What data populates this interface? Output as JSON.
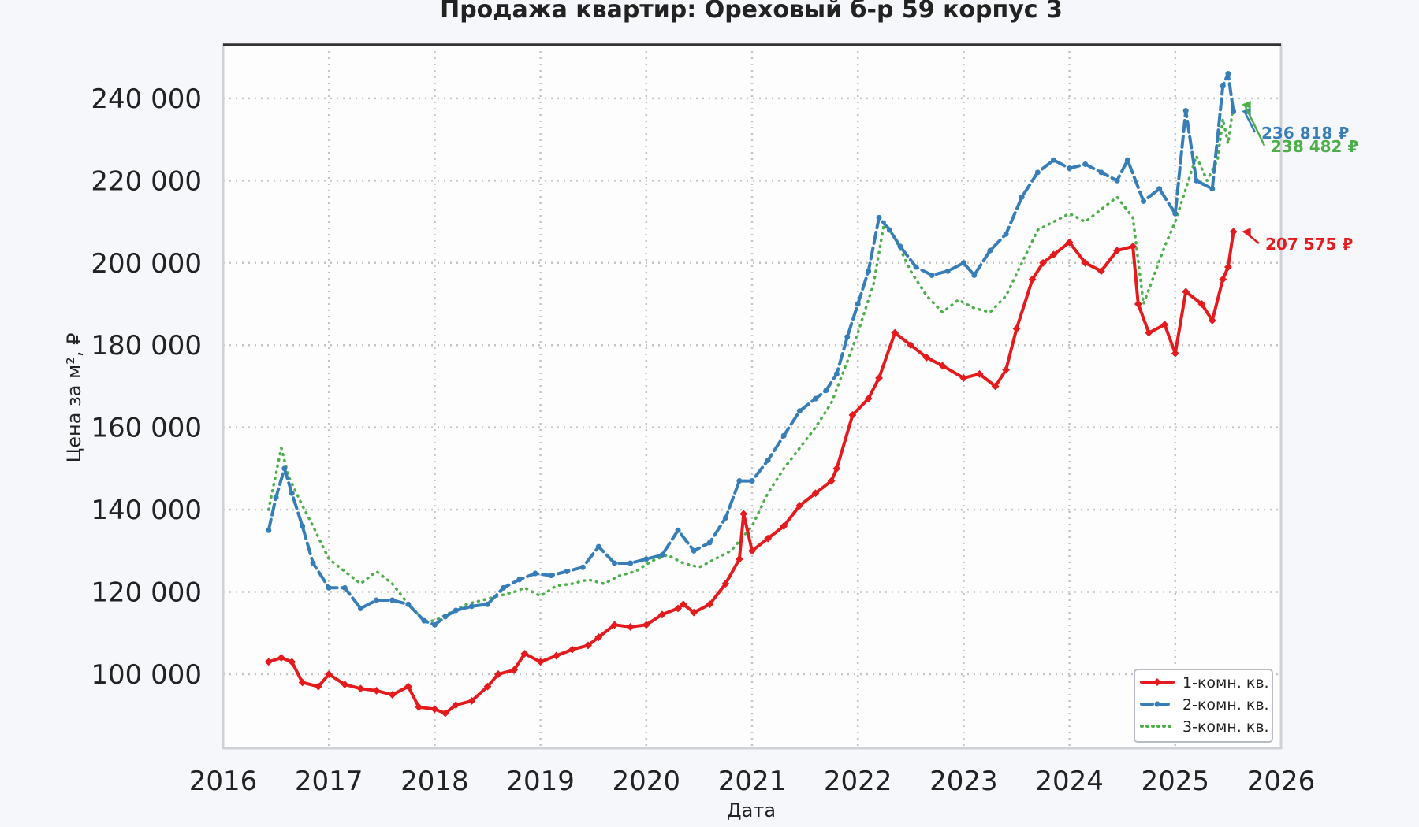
{
  "chart_data": {
    "type": "line",
    "title": "Продажа квартир: Ореховый б-р 59 корпус 3",
    "xlabel": "Дата",
    "ylabel": "Цена за м², ₽",
    "xlim": [
      2016,
      2026
    ],
    "ylim": [
      82000,
      253000
    ],
    "x_ticks": [
      "2016",
      "2017",
      "2018",
      "2019",
      "2020",
      "2021",
      "2022",
      "2023",
      "2024",
      "2025",
      "2026"
    ],
    "y_ticks": [
      "100 000",
      "120 000",
      "140 000",
      "160 000",
      "180 000",
      "200 000",
      "220 000",
      "240 000"
    ],
    "y_tick_values": [
      100000,
      120000,
      140000,
      160000,
      180000,
      200000,
      220000,
      240000
    ],
    "grid": true,
    "legend_position": "bottom-right",
    "series": [
      {
        "name": "1-комн. кв.",
        "color": "#e41a1c",
        "style": "solid-diamond",
        "end_label": "207 575 ₽",
        "end_value": 207575,
        "x": [
          2016.43,
          2016.55,
          2016.65,
          2016.75,
          2016.9,
          2017.0,
          2017.15,
          2017.3,
          2017.45,
          2017.6,
          2017.75,
          2017.85,
          2018.0,
          2018.1,
          2018.2,
          2018.35,
          2018.5,
          2018.6,
          2018.75,
          2018.85,
          2019.0,
          2019.15,
          2019.3,
          2019.45,
          2019.55,
          2019.7,
          2019.85,
          2020.0,
          2020.15,
          2020.3,
          2020.35,
          2020.45,
          2020.6,
          2020.75,
          2020.88,
          2020.92,
          2021.0,
          2021.15,
          2021.3,
          2021.45,
          2021.6,
          2021.75,
          2021.8,
          2021.95,
          2022.1,
          2022.2,
          2022.35,
          2022.5,
          2022.65,
          2022.8,
          2023.0,
          2023.15,
          2023.3,
          2023.4,
          2023.5,
          2023.65,
          2023.75,
          2023.85,
          2024.0,
          2024.15,
          2024.3,
          2024.45,
          2024.6,
          2024.65,
          2024.75,
          2024.9,
          2025.0,
          2025.1,
          2025.25,
          2025.35,
          2025.45,
          2025.5,
          2025.55
        ],
        "y": [
          103000,
          104000,
          103000,
          98000,
          97000,
          100000,
          97500,
          96500,
          96000,
          95000,
          97000,
          92000,
          91500,
          90500,
          92500,
          93500,
          97000,
          100000,
          101000,
          105000,
          103000,
          104500,
          106000,
          107000,
          109000,
          112000,
          111500,
          112000,
          114500,
          116000,
          117000,
          115000,
          117000,
          122000,
          128000,
          139000,
          130000,
          133000,
          136000,
          141000,
          144000,
          147000,
          150000,
          163000,
          167000,
          172000,
          183000,
          180000,
          177000,
          175000,
          172000,
          173000,
          170000,
          174000,
          184000,
          196000,
          200000,
          202000,
          205000,
          200000,
          198000,
          203000,
          204000,
          190000,
          183000,
          185000,
          178000,
          193000,
          190000,
          186000,
          196000,
          199000,
          207575
        ]
      },
      {
        "name": "2-комн. кв.",
        "color": "#377eb8",
        "style": "dashed-dot",
        "end_label": "236 818 ₽",
        "end_value": 236818,
        "x": [
          2016.43,
          2016.5,
          2016.58,
          2016.65,
          2016.75,
          2016.85,
          2017.0,
          2017.15,
          2017.3,
          2017.45,
          2017.6,
          2017.75,
          2017.9,
          2018.0,
          2018.1,
          2018.2,
          2018.35,
          2018.5,
          2018.65,
          2018.8,
          2018.95,
          2019.1,
          2019.25,
          2019.4,
          2019.55,
          2019.7,
          2019.85,
          2020.0,
          2020.15,
          2020.3,
          2020.45,
          2020.6,
          2020.75,
          2020.88,
          2021.0,
          2021.15,
          2021.3,
          2021.45,
          2021.6,
          2021.7,
          2021.8,
          2021.9,
          2022.0,
          2022.1,
          2022.2,
          2022.3,
          2022.4,
          2022.55,
          2022.7,
          2022.85,
          2023.0,
          2023.1,
          2023.25,
          2023.4,
          2023.55,
          2023.7,
          2023.85,
          2024.0,
          2024.15,
          2024.3,
          2024.45,
          2024.55,
          2024.7,
          2024.85,
          2025.0,
          2025.1,
          2025.2,
          2025.35,
          2025.45,
          2025.5,
          2025.55
        ],
        "y": [
          135000,
          143000,
          150000,
          144000,
          136000,
          127000,
          121000,
          121000,
          116000,
          118000,
          118000,
          117000,
          113000,
          112000,
          114000,
          115500,
          116500,
          117000,
          121000,
          123000,
          124500,
          124000,
          125000,
          126000,
          131000,
          127000,
          127000,
          128000,
          129000,
          135000,
          130000,
          132000,
          138000,
          147000,
          147000,
          152000,
          158000,
          164000,
          167000,
          169000,
          173000,
          182000,
          190000,
          198000,
          211000,
          208000,
          204000,
          199000,
          197000,
          198000,
          200000,
          197000,
          203000,
          207000,
          216000,
          222000,
          225000,
          223000,
          224000,
          222000,
          220000,
          225000,
          215000,
          218000,
          212000,
          237000,
          220000,
          218000,
          243000,
          246000,
          236818
        ]
      },
      {
        "name": "3-комн. кв.",
        "color": "#4daf4a",
        "style": "dotted",
        "end_label": "238 482 ₽",
        "end_value": 238482,
        "x": [
          2016.43,
          2016.55,
          2016.62,
          2016.75,
          2016.85,
          2017.0,
          2017.15,
          2017.3,
          2017.45,
          2017.6,
          2017.75,
          2017.9,
          2018.0,
          2018.15,
          2018.3,
          2018.45,
          2018.6,
          2018.75,
          2018.85,
          2019.0,
          2019.15,
          2019.3,
          2019.45,
          2019.6,
          2019.75,
          2019.9,
          2020.05,
          2020.2,
          2020.35,
          2020.5,
          2020.65,
          2020.8,
          2021.0,
          2021.15,
          2021.3,
          2021.45,
          2021.6,
          2021.75,
          2021.9,
          2022.0,
          2022.15,
          2022.25,
          2022.35,
          2022.5,
          2022.65,
          2022.8,
          2022.95,
          2023.1,
          2023.25,
          2023.4,
          2023.55,
          2023.7,
          2023.85,
          2024.0,
          2024.15,
          2024.3,
          2024.45,
          2024.6,
          2024.7,
          2024.8,
          2024.9,
          2025.0,
          2025.1,
          2025.2,
          2025.3,
          2025.4,
          2025.45,
          2025.5,
          2025.55
        ],
        "y": [
          140000,
          155000,
          148000,
          141000,
          136000,
          128000,
          125000,
          122000,
          125000,
          122000,
          117000,
          113000,
          113000,
          115000,
          117000,
          118000,
          119000,
          120000,
          121000,
          119000,
          121500,
          122000,
          123000,
          122000,
          124000,
          125000,
          127500,
          129000,
          127000,
          126000,
          128000,
          130000,
          136000,
          144000,
          150000,
          155000,
          160000,
          166000,
          176000,
          183000,
          195000,
          210000,
          206000,
          198000,
          192000,
          188000,
          191000,
          189000,
          188000,
          192000,
          200000,
          208000,
          210000,
          212000,
          210000,
          213000,
          216000,
          211000,
          190000,
          197000,
          204000,
          210000,
          218000,
          226000,
          220000,
          225000,
          235000,
          229000,
          238482
        ]
      }
    ]
  }
}
